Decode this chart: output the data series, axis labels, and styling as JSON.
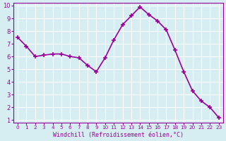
{
  "x": [
    0,
    1,
    2,
    3,
    4,
    5,
    6,
    7,
    8,
    9,
    10,
    11,
    12,
    13,
    14,
    15,
    16,
    17,
    18,
    19,
    20,
    21,
    22,
    23
  ],
  "y": [
    7.5,
    6.8,
    6.0,
    6.1,
    6.2,
    6.2,
    6.0,
    5.9,
    5.3,
    4.8,
    5.9,
    7.3,
    8.5,
    9.2,
    9.9,
    9.3,
    8.8,
    8.1,
    6.5,
    4.8,
    3.3,
    2.5,
    2.0,
    1.2
  ],
  "line_color": "#990099",
  "marker": "+",
  "marker_size": 5,
  "bg_color": "#d6eef2",
  "grid_color": "#ffffff",
  "xlabel": "Windchill (Refroidissement éolien,°C)",
  "ylabel": "",
  "xlim": [
    0,
    23
  ],
  "ylim": [
    1,
    10
  ],
  "xticks": [
    0,
    1,
    2,
    3,
    4,
    5,
    6,
    7,
    8,
    9,
    10,
    11,
    12,
    13,
    14,
    15,
    16,
    17,
    18,
    19,
    20,
    21,
    22,
    23
  ],
  "yticks": [
    1,
    2,
    3,
    4,
    5,
    6,
    7,
    8,
    9,
    10
  ],
  "label_color": "#990099",
  "tick_color": "#990099",
  "spine_color": "#990099"
}
